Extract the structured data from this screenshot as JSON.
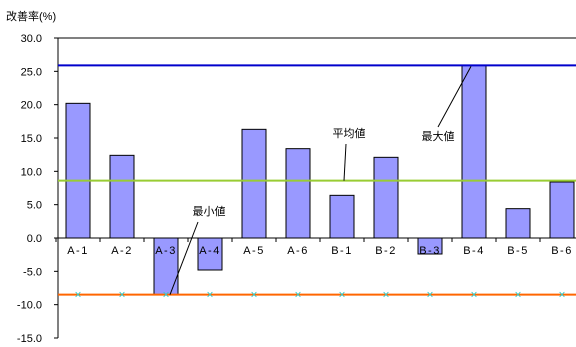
{
  "chart_data": {
    "type": "bar",
    "ylabel": "改善率(%)",
    "ylim": [
      -15.0,
      30.0
    ],
    "yticks": [
      "30.0",
      "25.0",
      "20.0",
      "15.0",
      "10.0",
      "5.0",
      "0.0",
      "-5.0",
      "-10.0",
      "-15.0"
    ],
    "grid": false,
    "categories": [
      "A-1",
      "A-2",
      "A-3",
      "A-4",
      "A-5",
      "A-6",
      "B-1",
      "B-2",
      "B-3",
      "B-4",
      "B-5",
      "B-6"
    ],
    "values": [
      20.2,
      12.4,
      -8.5,
      -4.8,
      16.3,
      13.4,
      6.4,
      12.1,
      -2.4,
      25.9,
      4.4,
      8.4
    ],
    "bar_color": "#9999ff",
    "reference_lines": [
      {
        "label": "最大値",
        "value": 25.9,
        "color": "#0000cc"
      },
      {
        "label": "平均値",
        "value": 8.6,
        "color": "#99cc33"
      },
      {
        "label": "最小値",
        "value": -8.5,
        "color": "#ff6600",
        "marker": "×",
        "marker_color": "#33cccc"
      }
    ]
  }
}
